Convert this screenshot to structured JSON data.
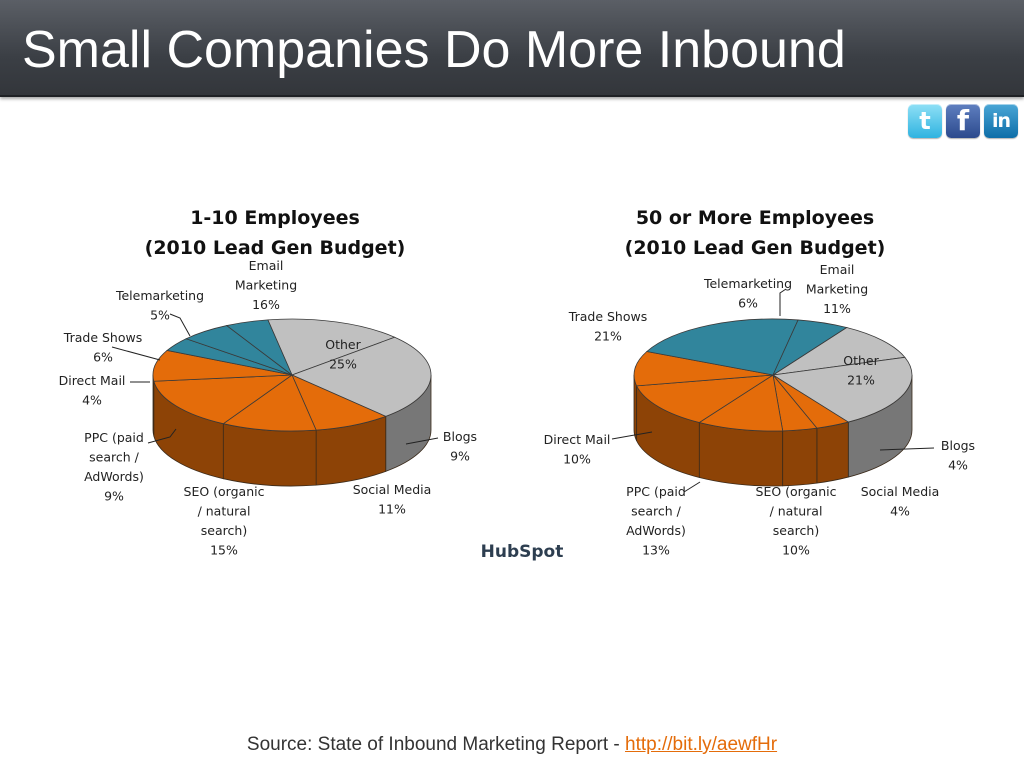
{
  "slide": {
    "title": "Small Companies Do More Inbound",
    "source_prefix": "Source: State of Inbound Marketing Report - ",
    "source_link": "http://bit.ly/aewfHr"
  },
  "social": {
    "twitter": "t",
    "facebook": "f",
    "linkedin": "in"
  },
  "logo": {
    "text": "HubSpot"
  },
  "colors": {
    "teal": "#31859c",
    "gray": "#c0c0c0",
    "orange": "#e46c0a",
    "title_bar": "#3b3f45",
    "link": "#e46c0a"
  },
  "chart_data": [
    {
      "type": "pie",
      "title_line1": "1-10 Employees",
      "title_line2": "(2010 Lead Gen Budget)",
      "slices": [
        {
          "name": "Email Marketing",
          "value": 16,
          "label": [
            "Email",
            "Marketing",
            "16%"
          ],
          "color": "gray"
        },
        {
          "name": "Other",
          "value": 25,
          "label": [
            "Other",
            "25%"
          ],
          "color": "gray"
        },
        {
          "name": "Blogs",
          "value": 9,
          "label": [
            "Blogs",
            "9%"
          ],
          "color": "orange"
        },
        {
          "name": "Social Media",
          "value": 11,
          "label": [
            "Social Media",
            "11%"
          ],
          "color": "orange"
        },
        {
          "name": "SEO (organic / natural search)",
          "value": 15,
          "label": [
            "SEO (organic",
            "/ natural",
            "search)",
            "15%"
          ],
          "color": "orange"
        },
        {
          "name": "PPC (paid search / AdWords)",
          "value": 9,
          "label": [
            "PPC (paid",
            "search /",
            "AdWords)",
            "9%"
          ],
          "color": "orange"
        },
        {
          "name": "Direct Mail",
          "value": 4,
          "label": [
            "Direct Mail",
            "4%"
          ],
          "color": "teal"
        },
        {
          "name": "Trade Shows",
          "value": 6,
          "label": [
            "Trade Shows",
            "6%"
          ],
          "color": "teal"
        },
        {
          "name": "Telemarketing",
          "value": 5,
          "label": [
            "Telemarketing",
            "5%"
          ],
          "color": "teal"
        }
      ]
    },
    {
      "type": "pie",
      "title_line1": "50 or More Employees",
      "title_line2": "(2010 Lead Gen Budget)",
      "slices": [
        {
          "name": "Email Marketing",
          "value": 11,
          "label": [
            "Email",
            "Marketing",
            "11%"
          ],
          "color": "gray"
        },
        {
          "name": "Other",
          "value": 21,
          "label": [
            "Other",
            "21%"
          ],
          "color": "gray"
        },
        {
          "name": "Blogs",
          "value": 4,
          "label": [
            "Blogs",
            "4%"
          ],
          "color": "orange"
        },
        {
          "name": "Social Media",
          "value": 4,
          "label": [
            "Social Media",
            "4%"
          ],
          "color": "orange"
        },
        {
          "name": "SEO (organic / natural search)",
          "value": 10,
          "label": [
            "SEO (organic",
            "/ natural",
            "search)",
            "10%"
          ],
          "color": "orange"
        },
        {
          "name": "PPC (paid search / AdWords)",
          "value": 13,
          "label": [
            "PPC (paid",
            "search /",
            "AdWords)",
            "13%"
          ],
          "color": "orange"
        },
        {
          "name": "Direct Mail",
          "value": 10,
          "label": [
            "Direct Mail",
            "10%"
          ],
          "color": "orange"
        },
        {
          "name": "Trade Shows",
          "value": 21,
          "label": [
            "Trade Shows",
            "21%"
          ],
          "color": "teal"
        },
        {
          "name": "Telemarketing",
          "value": 6,
          "label": [
            "Telemarketing",
            "6%"
          ],
          "color": "teal"
        }
      ]
    }
  ]
}
